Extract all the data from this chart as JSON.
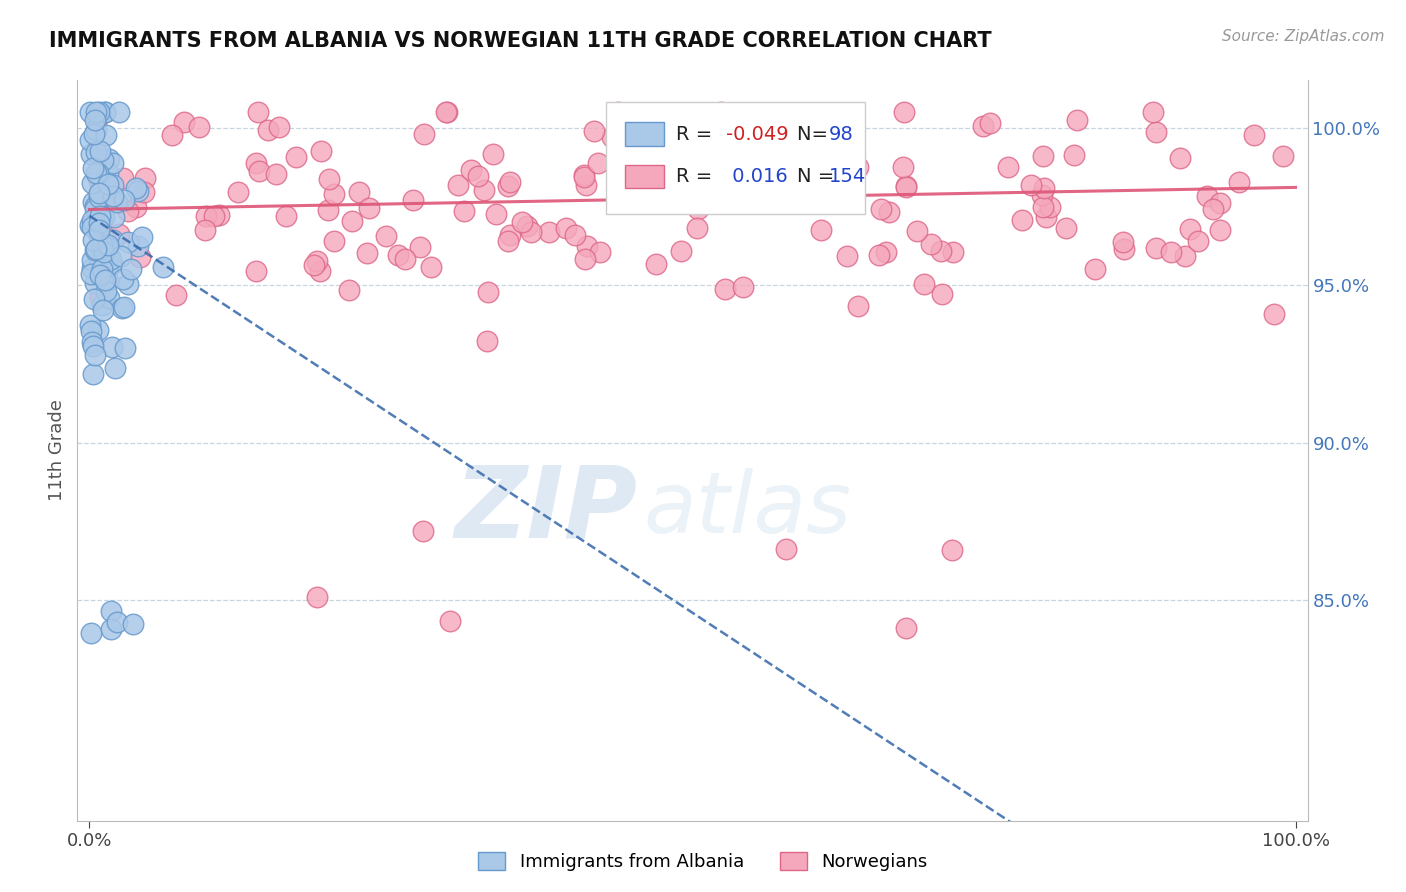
{
  "title": "IMMIGRANTS FROM ALBANIA VS NORWEGIAN 11TH GRADE CORRELATION CHART",
  "source_text": "Source: ZipAtlas.com",
  "ylabel": "11th Grade",
  "legend_r_blue": "-0.049",
  "legend_n_blue": "98",
  "legend_r_pink": "0.016",
  "legend_n_pink": "154",
  "blue_color": "#aac8e8",
  "pink_color": "#f5a8bc",
  "blue_edge": "#6699cc",
  "pink_edge": "#dd6688",
  "trend_blue_color": "#3366aa",
  "trend_pink_color": "#dd5577",
  "watermark_zip": "ZIP",
  "watermark_atlas": "atlas",
  "background_color": "#ffffff",
  "grid_color": "#bbccdd",
  "right_tick_color": "#4477bb",
  "yticks": [
    1.0,
    0.95,
    0.9,
    0.85
  ],
  "ytick_labels": [
    "100.0%",
    "95.0%",
    "90.0%",
    "85.0%"
  ],
  "xlim": [
    -0.01,
    1.01
  ],
  "ylim": [
    0.78,
    1.015
  ],
  "blue_trend_x": [
    0.0,
    1.0
  ],
  "blue_trend_y_start": 0.972,
  "blue_trend_y_end": 0.72,
  "pink_trend_y_start": 0.974,
  "pink_trend_y_end": 0.981
}
